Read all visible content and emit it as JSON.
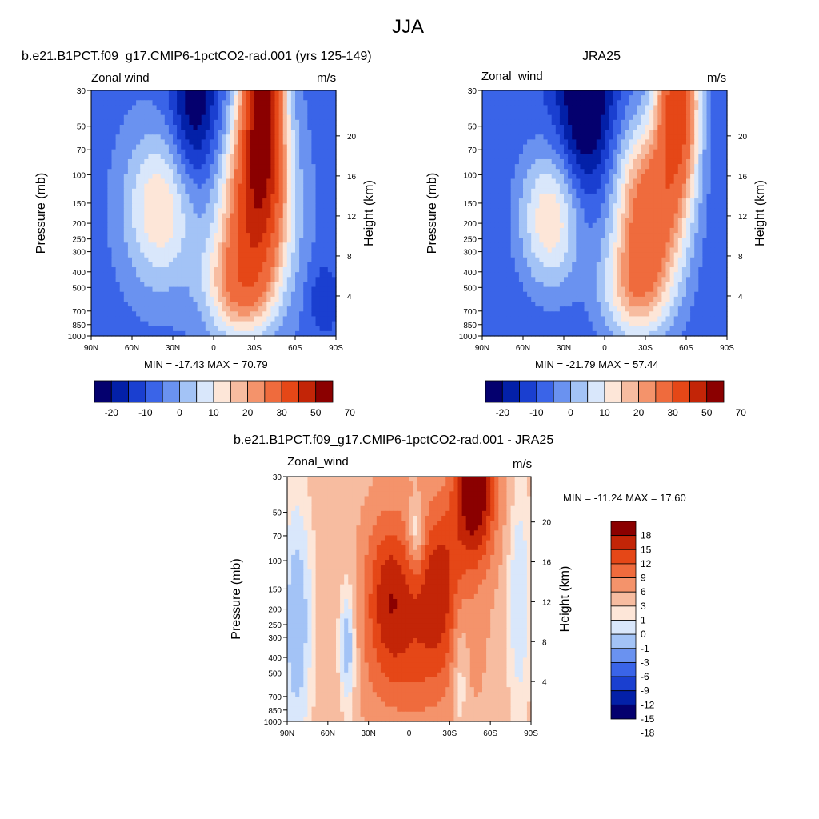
{
  "page": {
    "title": "JJA"
  },
  "colors": {
    "wind": [
      "#04006e",
      "#0320a8",
      "#1a3fd0",
      "#3a64e8",
      "#6a92f0",
      "#a3c3f6",
      "#d9e7fb",
      "#fde6d8",
      "#f7bca0",
      "#f4936b",
      "#ef6b3d",
      "#e54717",
      "#c32507",
      "#8b0000"
    ],
    "diff": [
      "#04006e",
      "#0320a8",
      "#1a3fd0",
      "#3a64e8",
      "#6a92f0",
      "#a3c3f6",
      "#d9e7fb",
      "#fde6d8",
      "#f7bca0",
      "#f4936b",
      "#ef6b3d",
      "#e54717",
      "#c32507",
      "#8b0000"
    ]
  },
  "chart_data": [
    {
      "type": "heatmap",
      "title": "b.e21.B1PCT.f09_g17.CMIP6-1pctCO2-rad.001 (yrs 125-149)",
      "left_label": "Zonal wind",
      "units": "m/s",
      "ylabel": "Pressure (mb)",
      "ylabel_right": "Height (km)",
      "x_ticks": [
        "90N",
        "60N",
        "30N",
        "0",
        "30S",
        "60S",
        "90S"
      ],
      "y_ticks": [
        "30",
        "50",
        "70",
        "100",
        "150",
        "200",
        "250",
        "300",
        "400",
        "500",
        "700",
        "850",
        "1000"
      ],
      "y_ticks_right": [
        "20",
        "16",
        "12",
        "8",
        "4"
      ],
      "min_max": "MIN = -17.43  MAX =  70.79",
      "colorbar_labels": [
        "-20",
        "-10",
        "0",
        "10",
        "20",
        "30",
        "50",
        "70"
      ],
      "features": [
        {
          "lat": -50,
          "p": 150,
          "value": 45
        },
        {
          "lat": -52,
          "p": 30,
          "value": 70
        },
        {
          "lat": 42,
          "p": 200,
          "value": 18
        },
        {
          "lat": 25,
          "p": 30,
          "value": -17
        }
      ]
    },
    {
      "type": "heatmap",
      "title": "JRA25",
      "left_label": "Zonal_wind",
      "units": "m/s",
      "ylabel": "Pressure (mb)",
      "ylabel_right": "Height (km)",
      "x_ticks": [
        "90N",
        "60N",
        "30N",
        "0",
        "30S",
        "60S",
        "90S"
      ],
      "y_ticks": [
        "30",
        "50",
        "70",
        "100",
        "150",
        "200",
        "250",
        "300",
        "400",
        "500",
        "700",
        "850",
        "1000"
      ],
      "y_ticks_right": [
        "20",
        "16",
        "12",
        "8",
        "4"
      ],
      "min_max": "MIN = -21.79  MAX =  57.44",
      "colorbar_labels": [
        "-20",
        "-10",
        "0",
        "10",
        "20",
        "30",
        "50",
        "70"
      ],
      "features": [
        {
          "lat": -45,
          "p": 200,
          "value": 40
        },
        {
          "lat": -55,
          "p": 30,
          "value": 57
        },
        {
          "lat": 42,
          "p": 200,
          "value": 18
        },
        {
          "lat": 25,
          "p": 30,
          "value": -21
        }
      ]
    },
    {
      "type": "heatmap",
      "title": "b.e21.B1PCT.f09_g17.CMIP6-1pctCO2-rad.001 - JRA25",
      "left_label": "Zonal_wind",
      "units": "m/s",
      "ylabel": "Pressure (mb)",
      "ylabel_right": "Height (km)",
      "x_ticks": [
        "90N",
        "60N",
        "30N",
        "0",
        "30S",
        "60S",
        "90S"
      ],
      "y_ticks": [
        "30",
        "50",
        "70",
        "100",
        "150",
        "200",
        "250",
        "300",
        "400",
        "500",
        "700",
        "850",
        "1000"
      ],
      "y_ticks_right": [
        "20",
        "16",
        "12",
        "8",
        "4"
      ],
      "min_max": "MIN = -11.24  MAX =  17.60",
      "colorbar_labels": [
        "18",
        "15",
        "12",
        "9",
        "6",
        "3",
        "1",
        "0",
        "-1",
        "-3",
        "-6",
        "-9",
        "-12",
        "-15",
        "-18"
      ],
      "features": [
        {
          "lat": -50,
          "p": 30,
          "value": 17
        },
        {
          "lat": -20,
          "p": 150,
          "value": 10
        },
        {
          "lat": 15,
          "p": 150,
          "value": 10
        },
        {
          "lat": 0,
          "p": 70,
          "value": -3
        }
      ]
    }
  ]
}
